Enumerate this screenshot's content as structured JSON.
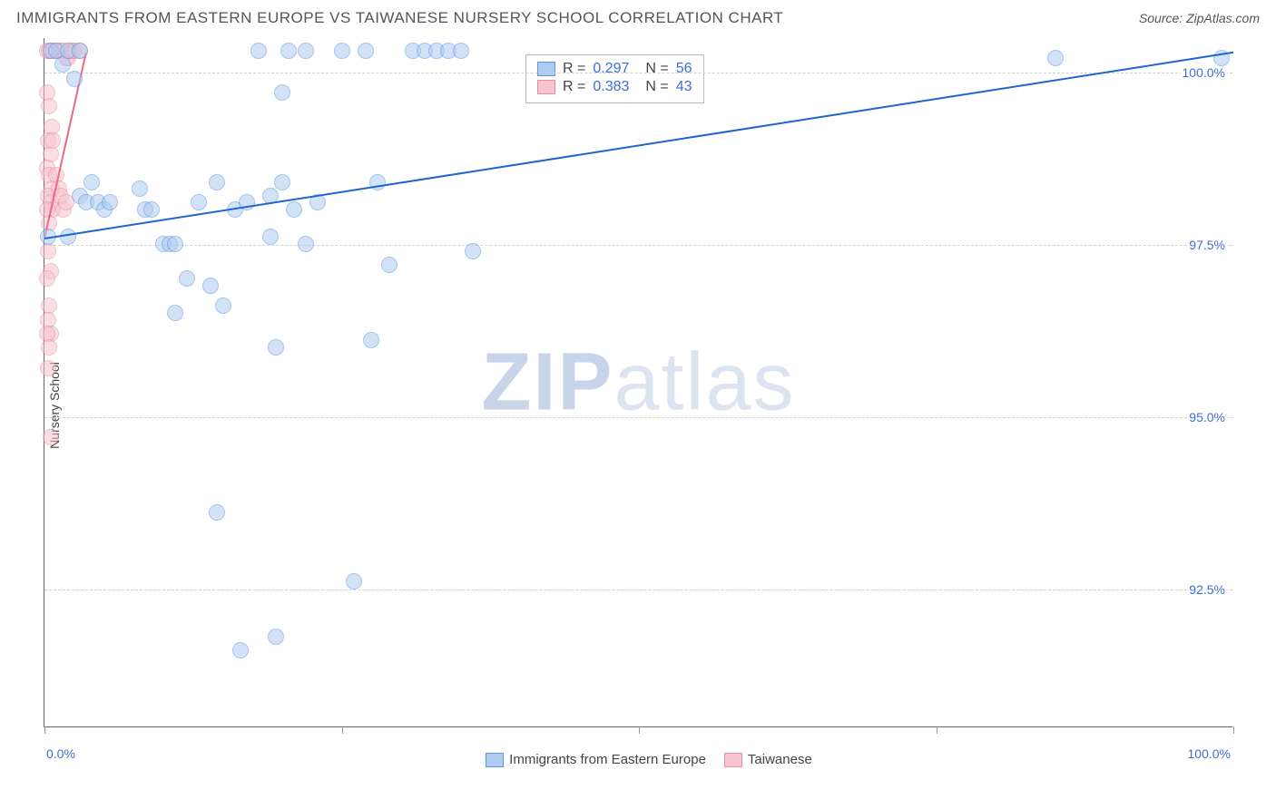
{
  "title": "IMMIGRANTS FROM EASTERN EUROPE VS TAIWANESE NURSERY SCHOOL CORRELATION CHART",
  "source": "Source: ZipAtlas.com",
  "ylabel": "Nursery School",
  "watermark_bold": "ZIP",
  "watermark_rest": "atlas",
  "chart": {
    "type": "scatter",
    "background_color": "#ffffff",
    "grid_color": "#d0d0d0",
    "xlim": [
      0,
      100
    ],
    "ylim": [
      90.5,
      100.5
    ],
    "x_ticks": [
      0,
      25,
      50,
      75,
      100
    ],
    "x_tick_labels": {
      "0": "0.0%",
      "100": "100.0%"
    },
    "y_ticks": [
      92.5,
      95.0,
      97.5,
      100.0
    ],
    "y_tick_labels": [
      "92.5%",
      "95.0%",
      "97.5%",
      "100.0%"
    ],
    "marker_radius": 9,
    "marker_opacity": 0.55,
    "line_width": 2,
    "series": [
      {
        "name": "Immigrants from Eastern Europe",
        "color_fill": "#aeccf2",
        "color_stroke": "#5f95dd",
        "line_color": "#1f64d0",
        "R": "0.297",
        "N": "56",
        "trend": {
          "x1": 0,
          "y1": 97.6,
          "x2": 100,
          "y2": 100.3
        },
        "points": [
          [
            0.5,
            100.3
          ],
          [
            1,
            100.3
          ],
          [
            1.5,
            100.1
          ],
          [
            2,
            100.3
          ],
          [
            2.5,
            99.9
          ],
          [
            3,
            100.3
          ],
          [
            3,
            98.2
          ],
          [
            3.5,
            98.1
          ],
          [
            4,
            98.4
          ],
          [
            4.5,
            98.1
          ],
          [
            5,
            98.0
          ],
          [
            5.5,
            98.1
          ],
          [
            2,
            97.6
          ],
          [
            0.3,
            97.6
          ],
          [
            8,
            98.3
          ],
          [
            8.5,
            98.0
          ],
          [
            9,
            98.0
          ],
          [
            10,
            97.5
          ],
          [
            10.5,
            97.5
          ],
          [
            11,
            96.5
          ],
          [
            11,
            97.5
          ],
          [
            12,
            97.0
          ],
          [
            13,
            98.1
          ],
          [
            14,
            96.9
          ],
          [
            14.5,
            98.4
          ],
          [
            15,
            96.6
          ],
          [
            16,
            98.0
          ],
          [
            17,
            98.1
          ],
          [
            18,
            100.3
          ],
          [
            19,
            98.2
          ],
          [
            19,
            97.6
          ],
          [
            19.5,
            96.0
          ],
          [
            20,
            98.4
          ],
          [
            20.5,
            100.3
          ],
          [
            21,
            98.0
          ],
          [
            16.5,
            91.6
          ],
          [
            19.5,
            91.8
          ],
          [
            22,
            97.5
          ],
          [
            22,
            100.3
          ],
          [
            23,
            98.1
          ],
          [
            25,
            100.3
          ],
          [
            26,
            92.6
          ],
          [
            27.5,
            96.1
          ],
          [
            27,
            100.3
          ],
          [
            28,
            98.4
          ],
          [
            29,
            97.2
          ],
          [
            31,
            100.3
          ],
          [
            32,
            100.3
          ],
          [
            33,
            100.3
          ],
          [
            34,
            100.3
          ],
          [
            35,
            100.3
          ],
          [
            36,
            97.4
          ],
          [
            14.5,
            93.6
          ],
          [
            20,
            99.7
          ],
          [
            85,
            100.2
          ],
          [
            99,
            100.2
          ]
        ]
      },
      {
        "name": "Taiwanese",
        "color_fill": "#f7c4cf",
        "color_stroke": "#e98fa4",
        "line_color": "#e86a87",
        "R": "0.383",
        "N": "43",
        "trend": {
          "x1": 0,
          "y1": 97.6,
          "x2": 3.5,
          "y2": 100.3
        },
        "points": [
          [
            0.2,
            100.3
          ],
          [
            0.4,
            100.3
          ],
          [
            0.6,
            100.3
          ],
          [
            0.8,
            100.3
          ],
          [
            1.0,
            100.3
          ],
          [
            1.2,
            100.3
          ],
          [
            1.4,
            100.3
          ],
          [
            1.6,
            100.3
          ],
          [
            1.8,
            100.2
          ],
          [
            2.0,
            100.2
          ],
          [
            2.2,
            100.3
          ],
          [
            2.4,
            100.3
          ],
          [
            0.2,
            99.7
          ],
          [
            0.4,
            99.5
          ],
          [
            0.6,
            99.2
          ],
          [
            0.3,
            99.0
          ],
          [
            0.5,
            98.8
          ],
          [
            0.7,
            99.0
          ],
          [
            0.2,
            98.6
          ],
          [
            0.4,
            98.5
          ],
          [
            0.6,
            98.3
          ],
          [
            0.3,
            98.2
          ],
          [
            0.5,
            98.1
          ],
          [
            0.7,
            98.0
          ],
          [
            0.2,
            98.0
          ],
          [
            0.4,
            97.8
          ],
          [
            0.3,
            97.4
          ],
          [
            0.5,
            97.1
          ],
          [
            0.2,
            97.0
          ],
          [
            0.4,
            96.6
          ],
          [
            0.3,
            96.4
          ],
          [
            0.5,
            96.2
          ],
          [
            0.2,
            96.2
          ],
          [
            0.4,
            96.0
          ],
          [
            0.3,
            95.7
          ],
          [
            0.5,
            94.7
          ],
          [
            1.0,
            98.5
          ],
          [
            1.2,
            98.3
          ],
          [
            1.4,
            98.2
          ],
          [
            1.6,
            98.0
          ],
          [
            1.8,
            98.1
          ],
          [
            2.5,
            100.3
          ],
          [
            3.0,
            100.3
          ]
        ]
      }
    ]
  },
  "legend_bottom": [
    {
      "label": "Immigrants from Eastern Europe",
      "fill": "#aeccf2",
      "stroke": "#5f95dd"
    },
    {
      "label": "Taiwanese",
      "fill": "#f7c4cf",
      "stroke": "#e98fa4"
    }
  ],
  "stats_legend": {
    "r_label": "R =",
    "n_label": "N ="
  }
}
